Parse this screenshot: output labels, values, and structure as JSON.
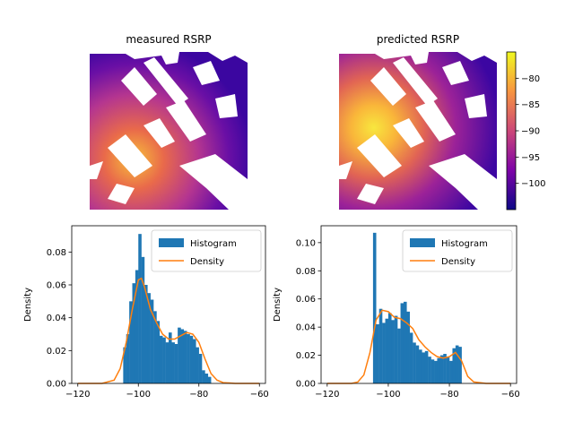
{
  "colors": {
    "histogram": "#1f77b4",
    "density": "#ff7f0e",
    "axis": "#000000",
    "colormap": "plasma"
  },
  "chart_data": [
    {
      "type": "heatmap",
      "title": "measured RSRP",
      "colormap": "plasma",
      "color_range": [
        -105,
        -75
      ],
      "axes_visible": false
    },
    {
      "type": "heatmap",
      "title": "predicted RSRP",
      "colormap": "plasma",
      "color_range": [
        -105,
        -75
      ],
      "axes_visible": false,
      "colorbar": {
        "ticks": [
          -80,
          -85,
          -90,
          -95,
          -100
        ],
        "tick_labels": [
          "−80",
          "−85",
          "−90",
          "−95",
          "−100"
        ]
      }
    },
    {
      "type": "bar",
      "title": "",
      "xlabel": "",
      "ylabel": "Density",
      "xlim": [
        -122,
        -58
      ],
      "ylim": [
        0,
        0.096
      ],
      "xticks": [
        -120,
        -100,
        -80,
        -60
      ],
      "xtick_labels": [
        "−120",
        "−100",
        "−80",
        "−60"
      ],
      "yticks": [
        0.0,
        0.02,
        0.04,
        0.06,
        0.08
      ],
      "ytick_labels": [
        "0.00",
        "0.02",
        "0.04",
        "0.06",
        "0.08"
      ],
      "legend": {
        "position": "top-right",
        "entries": [
          "Histogram",
          "Density"
        ]
      },
      "series": [
        {
          "name": "Histogram",
          "kind": "histogram",
          "bins": [
            -105,
            -104,
            -103,
            -102,
            -101,
            -100,
            -99,
            -98,
            -97,
            -96,
            -95,
            -94,
            -93,
            -92,
            -91,
            -90,
            -89,
            -88,
            -87,
            -86,
            -85,
            -84,
            -83,
            -82,
            -81,
            -80,
            -79,
            -78,
            -77
          ],
          "values": [
            0.022,
            0.03,
            0.05,
            0.061,
            0.069,
            0.091,
            0.077,
            0.06,
            0.055,
            0.051,
            0.044,
            0.038,
            0.029,
            0.028,
            0.025,
            0.031,
            0.025,
            0.024,
            0.034,
            0.033,
            0.032,
            0.03,
            0.029,
            0.027,
            0.022,
            0.018,
            0.008,
            0.006,
            0.004
          ],
          "bin_width": 1
        },
        {
          "name": "Density",
          "kind": "line",
          "x": [
            -120,
            -112,
            -108,
            -106,
            -104,
            -102,
            -100,
            -99,
            -98,
            -96,
            -94,
            -92,
            -90,
            -88,
            -86,
            -84,
            -82,
            -80,
            -78,
            -76,
            -74,
            -72,
            -68,
            -60
          ],
          "y": [
            0.0,
            0.0,
            0.002,
            0.009,
            0.025,
            0.045,
            0.063,
            0.064,
            0.059,
            0.045,
            0.037,
            0.03,
            0.027,
            0.027,
            0.029,
            0.031,
            0.03,
            0.025,
            0.015,
            0.006,
            0.002,
            0.0005,
            0.0,
            0.0
          ]
        }
      ]
    },
    {
      "type": "bar",
      "title": "",
      "xlabel": "",
      "ylabel": "Density",
      "xlim": [
        -122,
        -58
      ],
      "ylim": [
        0,
        0.112
      ],
      "xticks": [
        -120,
        -100,
        -80,
        -60
      ],
      "xtick_labels": [
        "−120",
        "−100",
        "−80",
        "−60"
      ],
      "yticks": [
        0.0,
        0.02,
        0.04,
        0.06,
        0.08,
        0.1
      ],
      "ytick_labels": [
        "0.00",
        "0.02",
        "0.04",
        "0.06",
        "0.08",
        "0.10"
      ],
      "legend": {
        "position": "top-right",
        "entries": [
          "Histogram",
          "Density"
        ]
      },
      "series": [
        {
          "name": "Histogram",
          "kind": "histogram",
          "bins": [
            -105,
            -104,
            -103,
            -102,
            -101,
            -100,
            -99,
            -98,
            -97,
            -96,
            -95,
            -94,
            -93,
            -92,
            -91,
            -90,
            -89,
            -88,
            -87,
            -86,
            -85,
            -84,
            -83,
            -82,
            -81,
            -80,
            -79,
            -78,
            -77
          ],
          "values": [
            0.107,
            0.042,
            0.053,
            0.043,
            0.046,
            0.05,
            0.045,
            0.048,
            0.039,
            0.057,
            0.058,
            0.051,
            0.036,
            0.029,
            0.027,
            0.024,
            0.022,
            0.023,
            0.019,
            0.017,
            0.016,
            0.018,
            0.02,
            0.021,
            0.019,
            0.016,
            0.025,
            0.027,
            0.026
          ],
          "bin_width": 1
        },
        {
          "name": "Density",
          "kind": "line",
          "x": [
            -120,
            -112,
            -110,
            -108,
            -106,
            -104,
            -102,
            -100,
            -98,
            -96,
            -94,
            -92,
            -90,
            -88,
            -86,
            -84,
            -82,
            -80,
            -78,
            -76,
            -74,
            -72,
            -68,
            -60
          ],
          "y": [
            0.0,
            0.0,
            0.001,
            0.006,
            0.022,
            0.045,
            0.052,
            0.051,
            0.047,
            0.046,
            0.043,
            0.039,
            0.031,
            0.026,
            0.022,
            0.019,
            0.018,
            0.019,
            0.022,
            0.016,
            0.005,
            0.001,
            0.0,
            0.0
          ]
        }
      ]
    }
  ]
}
